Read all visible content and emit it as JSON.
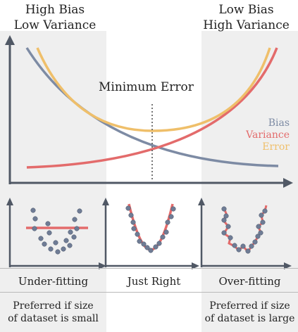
{
  "titles": {
    "left": "High Bias\nLow Variance",
    "right": "Low Bias\nHigh Variance"
  },
  "annotation": {
    "minimum_error": "Minimum Error"
  },
  "legend": [
    {
      "label": "Bias",
      "color": "#7d8ba4"
    },
    {
      "label": "Variance",
      "color": "#e36b6b"
    },
    {
      "label": "Error",
      "color": "#efbf6a"
    }
  ],
  "panels": {
    "under": {
      "label": "Under-fitting"
    },
    "just": {
      "label": "Just Right"
    },
    "over": {
      "label": "Over-fitting"
    }
  },
  "notes": {
    "left": "Preferred if size\nof dataset is small",
    "right": "Preferred if size\nof dataset is large"
  },
  "colors": {
    "shade": "#efefef",
    "axis": "#505865",
    "dots": "#6f7c95",
    "fit": "#e36b6b"
  }
}
